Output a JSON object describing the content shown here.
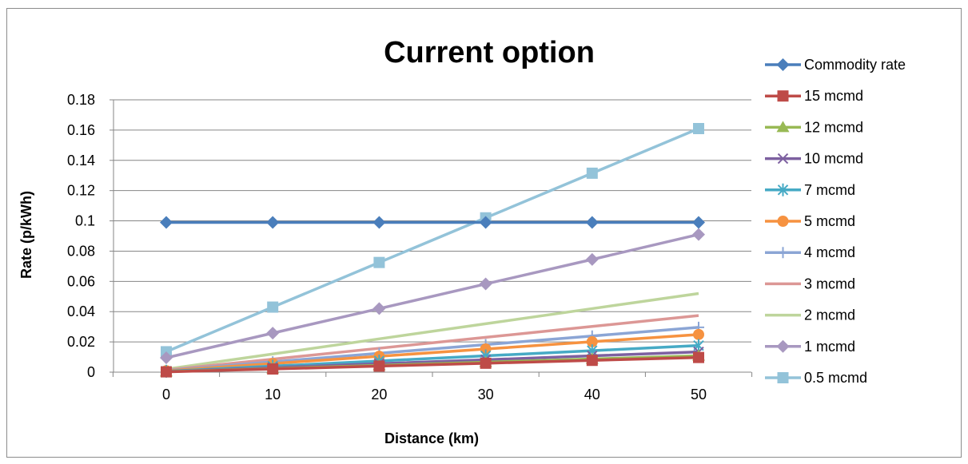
{
  "chart_data": {
    "type": "line",
    "title": "Current option",
    "xlabel": "Distance (km)",
    "ylabel": "Rate (p/kWh)",
    "x": [
      0,
      10,
      20,
      30,
      40,
      50
    ],
    "x_tick_labels": [
      "0",
      "10",
      "20",
      "30",
      "40",
      "50"
    ],
    "ylim": [
      0,
      0.18
    ],
    "y_ticks": [
      0,
      0.02,
      0.04,
      0.06,
      0.08,
      0.1,
      0.12,
      0.14,
      0.16,
      0.18
    ],
    "y_tick_labels": [
      "0",
      "0.02",
      "0.04",
      "0.06",
      "0.08",
      "0.1",
      "0.12",
      "0.14",
      "0.16",
      "0.18"
    ],
    "grid": "horizontal",
    "legend_position": "right",
    "series": [
      {
        "name": "Commodity rate",
        "color": "#4a7ebb",
        "marker": "diamond",
        "values": [
          0.099,
          0.099,
          0.099,
          0.099,
          0.099,
          0.099
        ]
      },
      {
        "name": "15 mcmd",
        "color": "#be4b48",
        "marker": "square",
        "values": [
          0.0002,
          0.0021,
          0.004,
          0.0059,
          0.0078,
          0.0097
        ]
      },
      {
        "name": "12 mcmd",
        "color": "#98b954",
        "marker": "triangle",
        "values": [
          0.0003,
          0.0024,
          0.0045,
          0.0066,
          0.0087,
          0.0108
        ]
      },
      {
        "name": "10 mcmd",
        "color": "#7d60a0",
        "marker": "x",
        "values": [
          0.0004,
          0.003,
          0.0056,
          0.0082,
          0.0108,
          0.0134
        ]
      },
      {
        "name": "7 mcmd",
        "color": "#46aac5",
        "marker": "star",
        "values": [
          0.0006,
          0.004,
          0.0074,
          0.0108,
          0.0142,
          0.0176
        ]
      },
      {
        "name": "5 mcmd",
        "color": "#f69240",
        "marker": "circle",
        "values": [
          0.0009,
          0.0057,
          0.0105,
          0.0153,
          0.0201,
          0.0249
        ]
      },
      {
        "name": "4 mcmd",
        "color": "#8ba5d5",
        "marker": "plus",
        "values": [
          0.0011,
          0.0068,
          0.0125,
          0.0182,
          0.0239,
          0.0296
        ]
      },
      {
        "name": "3 mcmd",
        "color": "#dc9795",
        "marker": "none",
        "values": [
          0.0014,
          0.0086,
          0.0158,
          0.023,
          0.0302,
          0.0374
        ]
      },
      {
        "name": "2 mcmd",
        "color": "#bed59c",
        "marker": "none",
        "values": [
          0.002,
          0.012,
          0.022,
          0.032,
          0.042,
          0.052
        ]
      },
      {
        "name": "1 mcmd",
        "color": "#a898c0",
        "marker": "diamond",
        "values": [
          0.0095,
          0.0258,
          0.042,
          0.0583,
          0.0745,
          0.091
        ]
      },
      {
        "name": "0.5 mcmd",
        "color": "#93c3d9",
        "marker": "square",
        "values": [
          0.0135,
          0.043,
          0.0725,
          0.102,
          0.1315,
          0.161
        ]
      }
    ]
  }
}
